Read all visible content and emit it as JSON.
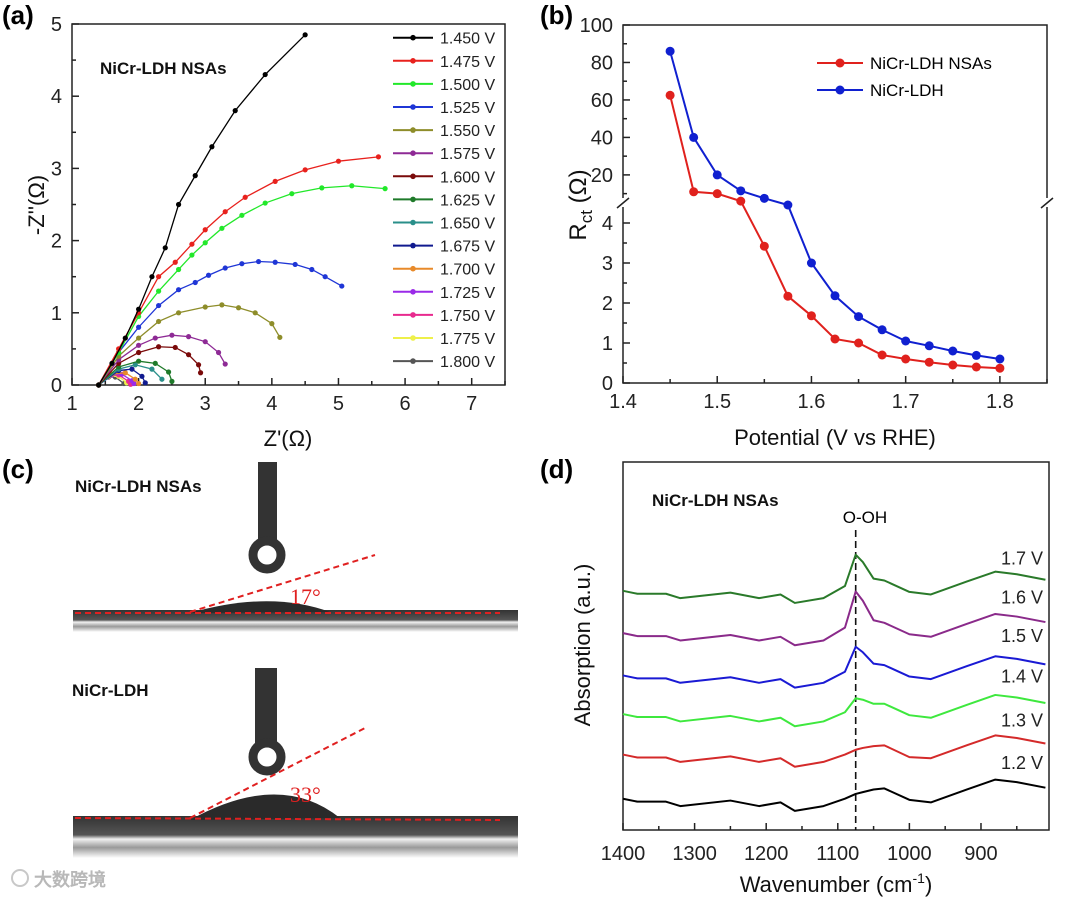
{
  "panels": {
    "a": {
      "label": "(a)",
      "annotation": "NiCr-LDH NSAs"
    },
    "b": {
      "label": "(b)"
    },
    "c": {
      "label": "(c)",
      "sample_top": "NiCr-LDH NSAs",
      "sample_bottom": "NiCr-LDH",
      "angle_top": "17°",
      "angle_bottom": "33°",
      "angle_top_value": 17,
      "angle_bottom_value": 33
    },
    "d": {
      "label": "(d)",
      "annotation": "NiCr-LDH NSAs",
      "peak_label": "O-OH",
      "peak_position": 1075
    }
  },
  "watermark": {
    "text": "大数跨境"
  },
  "chart_data": [
    {
      "id": "a",
      "type": "line",
      "title": "",
      "xlabel": "Z'(Ω)",
      "ylabel": "-Z''(Ω)",
      "xlim": [
        1,
        7.5
      ],
      "ylim": [
        0,
        5
      ],
      "xticks": [
        "1",
        "2",
        "3",
        "4",
        "5",
        "6",
        "7"
      ],
      "yticks": [
        "0",
        "1",
        "2",
        "3",
        "4",
        "5"
      ],
      "legend_position": "top-right",
      "series": [
        {
          "name": "1.450 V",
          "color": "#000000",
          "points": [
            [
              1.4,
              0
            ],
            [
              1.6,
              0.3
            ],
            [
              1.8,
              0.65
            ],
            [
              2.0,
              1.05
            ],
            [
              2.2,
              1.5
            ],
            [
              2.4,
              1.9
            ],
            [
              2.6,
              2.5
            ],
            [
              2.85,
              2.9
            ],
            [
              3.1,
              3.3
            ],
            [
              3.45,
              3.8
            ],
            [
              3.9,
              4.3
            ],
            [
              4.5,
              4.85
            ]
          ]
        },
        {
          "name": "1.475 V",
          "color": "#e8211d",
          "points": [
            [
              1.4,
              0
            ],
            [
              1.7,
              0.5
            ],
            [
              2.0,
              1.0
            ],
            [
              2.3,
              1.5
            ],
            [
              2.55,
              1.7
            ],
            [
              2.8,
              1.95
            ],
            [
              3.0,
              2.15
            ],
            [
              3.3,
              2.4
            ],
            [
              3.6,
              2.6
            ],
            [
              4.05,
              2.82
            ],
            [
              4.5,
              2.98
            ],
            [
              5.0,
              3.1
            ],
            [
              5.6,
              3.16
            ]
          ]
        },
        {
          "name": "1.500 V",
          "color": "#22e82a",
          "points": [
            [
              1.4,
              0
            ],
            [
              1.7,
              0.45
            ],
            [
              2.0,
              0.95
            ],
            [
              2.3,
              1.3
            ],
            [
              2.6,
              1.6
            ],
            [
              2.8,
              1.8
            ],
            [
              3.0,
              1.97
            ],
            [
              3.25,
              2.17
            ],
            [
              3.55,
              2.35
            ],
            [
              3.9,
              2.52
            ],
            [
              4.3,
              2.65
            ],
            [
              4.75,
              2.73
            ],
            [
              5.2,
              2.76
            ],
            [
              5.7,
              2.72
            ]
          ]
        },
        {
          "name": "1.525 V",
          "color": "#1f36d6",
          "points": [
            [
              1.4,
              0
            ],
            [
              1.7,
              0.45
            ],
            [
              2.0,
              0.8
            ],
            [
              2.3,
              1.1
            ],
            [
              2.6,
              1.32
            ],
            [
              2.85,
              1.42
            ],
            [
              3.05,
              1.52
            ],
            [
              3.3,
              1.62
            ],
            [
              3.55,
              1.68
            ],
            [
              3.8,
              1.71
            ],
            [
              4.05,
              1.7
            ],
            [
              4.35,
              1.67
            ],
            [
              4.6,
              1.6
            ],
            [
              4.8,
              1.5
            ],
            [
              5.05,
              1.37
            ]
          ]
        },
        {
          "name": "1.550 V",
          "color": "#8e8d2a",
          "points": [
            [
              1.4,
              0
            ],
            [
              1.7,
              0.4
            ],
            [
              2.0,
              0.65
            ],
            [
              2.3,
              0.88
            ],
            [
              2.6,
              1.0
            ],
            [
              3.0,
              1.08
            ],
            [
              3.25,
              1.11
            ],
            [
              3.5,
              1.07
            ],
            [
              3.75,
              1.0
            ],
            [
              4.0,
              0.85
            ],
            [
              4.12,
              0.66
            ]
          ]
        },
        {
          "name": "1.575 V",
          "color": "#8e2a95",
          "points": [
            [
              1.4,
              0
            ],
            [
              1.7,
              0.35
            ],
            [
              2.0,
              0.55
            ],
            [
              2.25,
              0.65
            ],
            [
              2.5,
              0.69
            ],
            [
              2.75,
              0.67
            ],
            [
              3.0,
              0.6
            ],
            [
              3.2,
              0.45
            ],
            [
              3.3,
              0.29
            ]
          ]
        },
        {
          "name": "1.600 V",
          "color": "#7a0a0a",
          "points": [
            [
              1.4,
              0
            ],
            [
              1.7,
              0.3
            ],
            [
              2.0,
              0.45
            ],
            [
              2.3,
              0.53
            ],
            [
              2.55,
              0.52
            ],
            [
              2.75,
              0.42
            ],
            [
              2.9,
              0.28
            ],
            [
              2.93,
              0.17
            ]
          ]
        },
        {
          "name": "1.625 V",
          "color": "#1f7a2a",
          "points": [
            [
              1.4,
              0
            ],
            [
              1.7,
              0.25
            ],
            [
              2.0,
              0.33
            ],
            [
              2.25,
              0.3
            ],
            [
              2.45,
              0.18
            ],
            [
              2.5,
              0.05
            ]
          ]
        },
        {
          "name": "1.650 V",
          "color": "#2a8f8a",
          "points": [
            [
              1.4,
              0
            ],
            [
              1.7,
              0.22
            ],
            [
              1.95,
              0.28
            ],
            [
              2.2,
              0.22
            ],
            [
              2.35,
              0.08
            ]
          ]
        },
        {
          "name": "1.675 V",
          "color": "#101a8f",
          "points": [
            [
              1.4,
              0
            ],
            [
              1.7,
              0.2
            ],
            [
              1.9,
              0.22
            ],
            [
              2.05,
              0.12
            ],
            [
              2.1,
              0.03
            ]
          ]
        },
        {
          "name": "1.700 V",
          "color": "#e88a2a",
          "points": [
            [
              1.4,
              0
            ],
            [
              1.6,
              0.15
            ],
            [
              1.8,
              0.17
            ],
            [
              1.95,
              0.08
            ],
            [
              2.0,
              0.02
            ]
          ]
        },
        {
          "name": "1.725 V",
          "color": "#9a2ae8",
          "points": [
            [
              1.4,
              0
            ],
            [
              1.6,
              0.14
            ],
            [
              1.75,
              0.15
            ],
            [
              1.9,
              0.06
            ],
            [
              1.93,
              0.02
            ]
          ]
        },
        {
          "name": "1.750 V",
          "color": "#e82a8e",
          "points": [
            [
              1.4,
              0
            ],
            [
              1.55,
              0.13
            ],
            [
              1.7,
              0.14
            ],
            [
              1.85,
              0.05
            ],
            [
              1.88,
              0.01
            ]
          ]
        },
        {
          "name": "1.775 V",
          "color": "#eef04a",
          "points": [
            [
              1.4,
              0
            ],
            [
              1.55,
              0.12
            ],
            [
              1.7,
              0.12
            ],
            [
              1.82,
              0.03
            ]
          ]
        },
        {
          "name": "1.800 V",
          "color": "#555555",
          "points": [
            [
              1.4,
              0
            ],
            [
              1.55,
              0.11
            ],
            [
              1.65,
              0.11
            ],
            [
              1.78,
              0.02
            ]
          ]
        }
      ]
    },
    {
      "id": "b",
      "type": "line",
      "xlabel": "Potential (V vs RHE)",
      "ylabel_main": "R",
      "ylabel_sub": "ct",
      "ylabel_unit": " (Ω)",
      "xlim": [
        1.4,
        1.85
      ],
      "y_broken_axis": {
        "lower": [
          0,
          4.5
        ],
        "upper": [
          5,
          100
        ]
      },
      "xticks": [
        "1.4",
        "1.5",
        "1.6",
        "1.7",
        "1.8"
      ],
      "yticks_lower": [
        "0",
        "1",
        "2",
        "3",
        "4"
      ],
      "yticks_upper": [
        "20",
        "40",
        "60",
        "80",
        "100"
      ],
      "legend_position": "top-right",
      "x": [
        1.45,
        1.475,
        1.5,
        1.525,
        1.55,
        1.575,
        1.6,
        1.625,
        1.65,
        1.675,
        1.7,
        1.725,
        1.75,
        1.775,
        1.8
      ],
      "series": [
        {
          "name": "NiCr-LDH NSAs",
          "color": "#e0211d",
          "values": [
            62.5,
            11,
            10,
            6,
            3.42,
            2.17,
            1.68,
            1.1,
            1.0,
            0.7,
            0.6,
            0.52,
            0.45,
            0.4,
            0.37
          ]
        },
        {
          "name": "NiCr-LDH",
          "color": "#1020d0",
          "values": [
            86,
            40,
            20,
            11.5,
            7.5,
            4.45,
            3.0,
            2.18,
            1.66,
            1.33,
            1.05,
            0.93,
            0.8,
            0.69,
            0.6
          ]
        }
      ]
    },
    {
      "id": "d",
      "type": "line",
      "xlabel_main": "Wavenumber (cm",
      "xlabel_sup": "-1",
      "xlabel_end": ")",
      "ylabel": "Absorption (a.u.)",
      "xlim": [
        1400,
        805
      ],
      "ylim": [
        0,
        10
      ],
      "xticks": [
        "1400",
        "1300",
        "1200",
        "1100",
        "1000",
        "900"
      ],
      "x": [
        1400,
        1380,
        1340,
        1320,
        1250,
        1210,
        1180,
        1160,
        1120,
        1090,
        1075,
        1065,
        1050,
        1035,
        1000,
        970,
        920,
        880,
        850,
        810
      ],
      "series": [
        {
          "name": "1.2 V",
          "color": "#000000",
          "label_y": 1.85,
          "values": [
            0.85,
            0.77,
            0.77,
            0.65,
            0.8,
            0.65,
            0.75,
            0.52,
            0.65,
            0.85,
            0.98,
            1.03,
            1.1,
            1.13,
            0.82,
            0.75,
            1.1,
            1.37,
            1.3,
            1.15
          ]
        },
        {
          "name": "1.3 V",
          "color": "#d42a2a",
          "label_y": 3.0,
          "values": [
            2.05,
            1.97,
            1.97,
            1.85,
            2.0,
            1.85,
            1.95,
            1.72,
            1.85,
            2.05,
            2.18,
            2.23,
            2.28,
            2.3,
            1.98,
            1.95,
            2.3,
            2.57,
            2.5,
            2.35
          ]
        },
        {
          "name": "1.4 V",
          "color": "#3ee83e",
          "label_y": 4.2,
          "values": [
            3.15,
            3.07,
            3.07,
            2.95,
            3.1,
            2.95,
            3.05,
            2.82,
            2.95,
            3.2,
            3.58,
            3.54,
            3.43,
            3.43,
            3.12,
            3.05,
            3.4,
            3.67,
            3.6,
            3.45
          ]
        },
        {
          "name": "1.5 V",
          "color": "#1a1ad4",
          "label_y": 5.3,
          "values": [
            4.2,
            4.12,
            4.12,
            4.0,
            4.15,
            4.0,
            4.1,
            3.87,
            4.0,
            4.3,
            4.98,
            4.83,
            4.52,
            4.48,
            4.17,
            4.1,
            4.45,
            4.72,
            4.65,
            4.5
          ]
        },
        {
          "name": "1.6 V",
          "color": "#8a2a8a",
          "label_y": 6.35,
          "values": [
            5.35,
            5.27,
            5.27,
            5.15,
            5.3,
            5.15,
            5.25,
            5.02,
            5.15,
            5.5,
            6.48,
            6.23,
            5.7,
            5.63,
            5.32,
            5.25,
            5.6,
            5.87,
            5.8,
            5.65
          ]
        },
        {
          "name": "1.7 V",
          "color": "#2a7a2a",
          "label_y": 7.4,
          "values": [
            6.5,
            6.42,
            6.42,
            6.3,
            6.45,
            6.3,
            6.4,
            6.17,
            6.3,
            6.63,
            7.48,
            7.28,
            6.83,
            6.78,
            6.47,
            6.4,
            6.75,
            7.02,
            6.95,
            6.8
          ]
        }
      ]
    }
  ]
}
